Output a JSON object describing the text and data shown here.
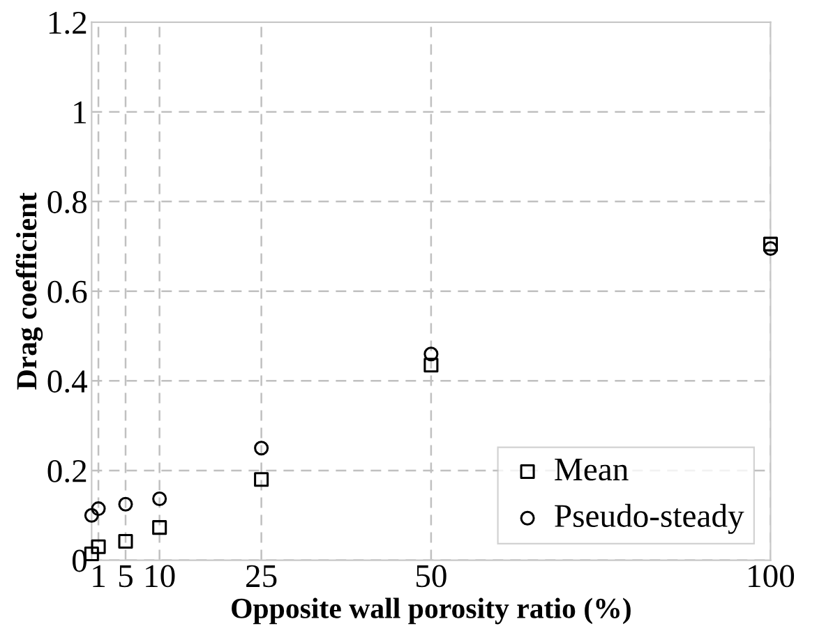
{
  "chart_data": {
    "type": "scatter",
    "xlabel": "Opposite wall porosity ratio (%)",
    "ylabel": "Drag coefficient",
    "x": [
      0,
      1,
      5,
      10,
      25,
      50,
      100
    ],
    "series": [
      {
        "name": "Mean",
        "color": "#000000",
        "marker": "square",
        "values": [
          0.014,
          0.03,
          0.042,
          0.073,
          0.18,
          0.435,
          0.705
        ]
      },
      {
        "name": "Pseudo-steady",
        "color": "#000000",
        "marker": "circle",
        "values": [
          0.1,
          0.115,
          0.125,
          0.137,
          0.25,
          0.46,
          0.695
        ]
      }
    ],
    "xlim": [
      0,
      100
    ],
    "xticks": [
      1,
      5,
      10,
      25,
      50,
      100
    ],
    "ylim": [
      0,
      1.2
    ],
    "yticks": [
      0,
      0.2,
      0.4,
      0.6,
      0.8,
      1,
      1.2
    ],
    "grid": true,
    "legend": "bottom right"
  }
}
